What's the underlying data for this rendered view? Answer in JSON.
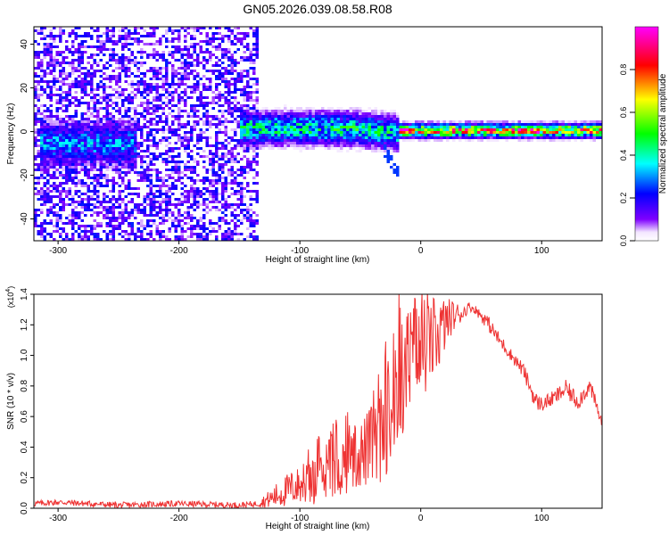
{
  "figure": {
    "title": "GN05.2026.039.08.58.R08"
  },
  "chart_data": [
    {
      "type": "heatmap",
      "title": "GN05.2026.039.08.58.R08",
      "xlabel": "Height of straight line (km)",
      "ylabel": "Frequency (Hz)",
      "xlim": [
        -320,
        150
      ],
      "ylim": [
        -50,
        48
      ],
      "x_ticks": [
        -300,
        -200,
        -100,
        0,
        100
      ],
      "y_ticks": [
        -40,
        -20,
        0,
        20,
        40
      ],
      "colorbar": {
        "label": "Normalized spectral amplitude",
        "range": [
          0,
          1
        ],
        "ticks": [
          "0.0",
          "0.2",
          "0.4",
          "0.6",
          "0.8"
        ],
        "tick_values": [
          0,
          0.2,
          0.4,
          0.6,
          0.8
        ],
        "colormap": [
          "#ffffff",
          "#7f00ff",
          "#0000ff",
          "#00ffff",
          "#00ff00",
          "#ffff00",
          "#ff0000",
          "#ff00ff"
        ]
      },
      "regions": [
        {
          "x_range": [
            -320,
            -135
          ],
          "freq_range": [
            -50,
            48
          ],
          "amplitude": 0.12,
          "description": "scattered noise"
        },
        {
          "x_range": [
            -315,
            -235
          ],
          "freq_center": -5,
          "freq_halfwidth": 10,
          "amplitude": 0.28
        },
        {
          "x_range": [
            -150,
            -20
          ],
          "freq_center": 2,
          "freq_halfwidth": 7,
          "amplitude": 0.4
        },
        {
          "x_range": [
            -20,
            150
          ],
          "freq_center": 1,
          "freq_halfwidth": 3,
          "amplitude": 0.7
        },
        {
          "x_range": [
            -20,
            -10
          ],
          "freq_center": 1,
          "freq_halfwidth": 2,
          "amplitude": 0.95
        },
        {
          "x_range": [
            78,
            98
          ],
          "freq_center": 1,
          "freq_halfwidth": 2,
          "amplitude": 0.95
        }
      ]
    },
    {
      "type": "line",
      "xlabel": "Height of straight line (km)",
      "ylabel": "SNR (10 * v/v)",
      "y_multiplier_label": "(x10",
      "y_multiplier_exp": "4",
      "y_multiplier_close": ")",
      "xlim": [
        -320,
        150
      ],
      "ylim": [
        0,
        1.4
      ],
      "x_ticks": [
        -300,
        -200,
        -100,
        0,
        100
      ],
      "y_ticks": [
        "0.0",
        "0.2",
        "0.4",
        "0.6",
        "0.8",
        "1.0",
        "1.2",
        "1.4"
      ],
      "y_tick_values": [
        0,
        0.2,
        0.4,
        0.6,
        0.8,
        1.0,
        1.2,
        1.4
      ],
      "series": [
        {
          "name": "SNR",
          "color": "#ee3333",
          "x": [
            -320,
            -300,
            -250,
            -200,
            -150,
            -135,
            -125,
            -115,
            -105,
            -95,
            -85,
            -75,
            -65,
            -55,
            -45,
            -35,
            -25,
            -15,
            -8,
            -2,
            5,
            15,
            25,
            35,
            40,
            45,
            55,
            65,
            75,
            85,
            95,
            100,
            110,
            120,
            130,
            140,
            150
          ],
          "y": [
            0.03,
            0.04,
            0.02,
            0.03,
            0.02,
            0.03,
            0.06,
            0.1,
            0.14,
            0.16,
            0.18,
            0.22,
            0.28,
            0.32,
            0.38,
            0.45,
            0.6,
            0.85,
            0.95,
            1.0,
            1.05,
            1.15,
            1.25,
            1.28,
            1.32,
            1.3,
            1.22,
            1.1,
            1.0,
            0.9,
            0.7,
            0.68,
            0.72,
            0.78,
            0.7,
            0.8,
            0.55
          ],
          "noise_amplitude": [
            0.02,
            0.02,
            0.02,
            0.02,
            0.02,
            0.02,
            0.06,
            0.1,
            0.12,
            0.13,
            0.16,
            0.18,
            0.2,
            0.2,
            0.25,
            0.3,
            0.35,
            0.4,
            0.4,
            0.35,
            0.3,
            0.25,
            0.12,
            0.05,
            0.03,
            0.03,
            0.05,
            0.05,
            0.04,
            0.05,
            0.06,
            0.05,
            0.05,
            0.06,
            0.06,
            0.05,
            0.05
          ]
        }
      ]
    }
  ]
}
